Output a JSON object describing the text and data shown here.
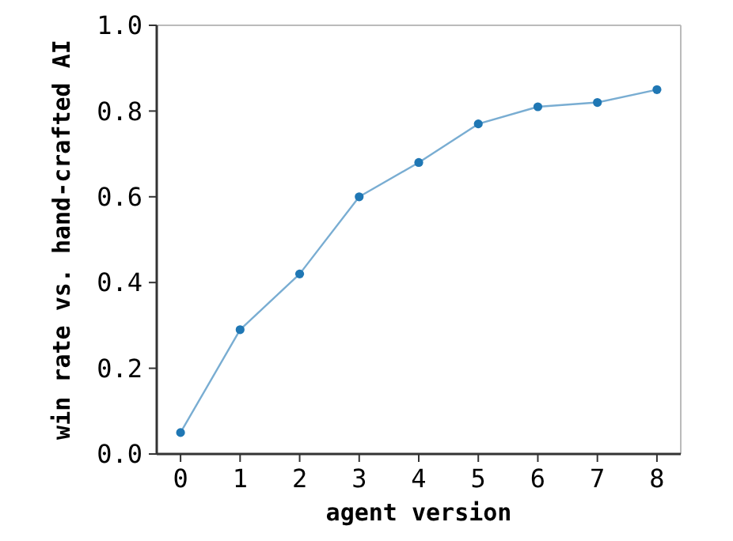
{
  "chart_data": {
    "type": "line",
    "xlabel": "agent version",
    "ylabel": "win rate vs. hand-crafted AI",
    "x": [
      0,
      1,
      2,
      3,
      4,
      5,
      6,
      7,
      8
    ],
    "series": [
      {
        "color": "#1f77b4",
        "values": [
          0.05,
          0.29,
          0.42,
          0.6,
          0.68,
          0.77,
          0.81,
          0.82,
          0.85
        ]
      }
    ],
    "xlim": [
      -0.4,
      8.4
    ],
    "xticks": [
      0,
      1,
      2,
      3,
      4,
      5,
      6,
      7,
      8
    ],
    "ylim": [
      0,
      1
    ],
    "yticks": [
      {
        "value": 0,
        "label": "0.0"
      },
      {
        "value": 0.2,
        "label": "0.2"
      },
      {
        "value": 0.4,
        "label": "0.4"
      },
      {
        "value": 0.6,
        "label": "0.6"
      },
      {
        "value": 0.8,
        "label": "0.8"
      },
      {
        "value": 1,
        "label": "1.0"
      }
    ],
    "marker": "circle",
    "line_style": "solid",
    "grid": false
  }
}
